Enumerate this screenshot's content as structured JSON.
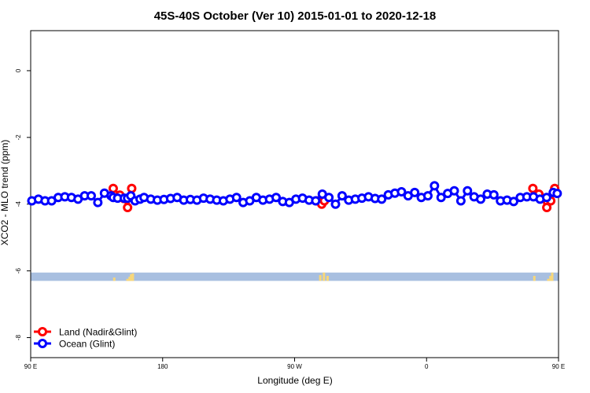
{
  "chart_data": {
    "type": "line",
    "title": "45S-40S October (Ver 10)   2015-01-01 to 2020-12-18",
    "xlabel": "Longitude (deg E)",
    "ylabel": "XCO2 - MLO trend (ppm)",
    "xlim": [
      90,
      450
    ],
    "ylim": [
      -8.6,
      1.2
    ],
    "x_ticks": [
      {
        "value": 90,
        "label": "90 E"
      },
      {
        "value": 180,
        "label": "180"
      },
      {
        "value": 270,
        "label": "90 W"
      },
      {
        "value": 360,
        "label": "0"
      },
      {
        "value": 450,
        "label": "90 E"
      },
      {
        "value": 540,
        "label": "180"
      }
    ],
    "y_ticks": [
      {
        "value": 0,
        "label": "0"
      },
      {
        "value": -2,
        "label": "-2"
      },
      {
        "value": -4,
        "label": "-4"
      },
      {
        "value": -6,
        "label": "-6"
      },
      {
        "value": -8,
        "label": "-8"
      }
    ],
    "legend_position": "bottom-left",
    "series": [
      {
        "name": "Land (Nadir&Glint)",
        "color": "#ff0000",
        "segments": [
          {
            "x": [
              146.3,
              150.8,
              153.5,
              156.1,
              158.9
            ],
            "y": [
              -3.53,
              -3.73,
              -3.83,
              -4.1,
              -3.53
            ]
          },
          {
            "x": [
              285.0,
              288.5,
              290.3
            ],
            "y": [
              -3.9,
              -4.0,
              -3.9
            ]
          },
          {
            "x": [
              432.5,
              436.6,
              442.0,
              444.7,
              447.4
            ],
            "y": [
              -3.53,
              -3.7,
              -4.1,
              -3.9,
              -3.53
            ]
          }
        ]
      },
      {
        "name": "Ocean (Glint)",
        "color": "#0000ff",
        "x": [
          90.8,
          95.3,
          99.8,
          104.3,
          108.8,
          113.3,
          117.8,
          122.3,
          126.8,
          131.3,
          135.8,
          140.3,
          144.8,
          146.3,
          149.3,
          153.8,
          156.1,
          158.3,
          161.2,
          164.6,
          167.3,
          171.9,
          176.4,
          180.9,
          185.4,
          189.9,
          194.4,
          198.9,
          203.4,
          207.9,
          212.4,
          216.9,
          221.4,
          225.9,
          230.4,
          234.9,
          239.4,
          243.9,
          248.4,
          252.9,
          257.4,
          261.9,
          266.4,
          270.9,
          275.4,
          279.9,
          284.4,
          288.9,
          293.4,
          297.9,
          302.4,
          306.9,
          311.4,
          315.9,
          320.4,
          324.9,
          329.4,
          333.9,
          338.4,
          342.9,
          347.4,
          351.9,
          356.4,
          360.9,
          365.4,
          369.9,
          374.4,
          378.9,
          383.4,
          387.9,
          392.4,
          396.9,
          401.4,
          405.9,
          410.4,
          414.9,
          419.4,
          423.9,
          428.4,
          432.9,
          437.4,
          441.9,
          446.4,
          449.1
        ],
        "y": [
          -3.9,
          -3.85,
          -3.9,
          -3.9,
          -3.8,
          -3.78,
          -3.8,
          -3.85,
          -3.75,
          -3.75,
          -3.95,
          -3.67,
          -3.75,
          -3.8,
          -3.82,
          -3.82,
          -3.82,
          -3.75,
          -3.9,
          -3.85,
          -3.8,
          -3.85,
          -3.88,
          -3.86,
          -3.83,
          -3.8,
          -3.88,
          -3.86,
          -3.88,
          -3.82,
          -3.85,
          -3.88,
          -3.9,
          -3.85,
          -3.8,
          -3.95,
          -3.9,
          -3.8,
          -3.88,
          -3.85,
          -3.8,
          -3.92,
          -3.95,
          -3.85,
          -3.82,
          -3.88,
          -3.9,
          -3.7,
          -3.8,
          -4.0,
          -3.75,
          -3.88,
          -3.85,
          -3.82,
          -3.78,
          -3.83,
          -3.85,
          -3.72,
          -3.67,
          -3.63,
          -3.75,
          -3.65,
          -3.8,
          -3.75,
          -3.45,
          -3.8,
          -3.68,
          -3.6,
          -3.9,
          -3.6,
          -3.78,
          -3.85,
          -3.7,
          -3.72,
          -3.9,
          -3.88,
          -3.92,
          -3.8,
          -3.78,
          -3.78,
          -3.85,
          -3.8,
          -3.65,
          -3.68
        ]
      }
    ],
    "land_ocean_strip": {
      "y_range": [
        -6.3,
        -6.05
      ],
      "ocean_color": "#a8bfe0",
      "land_color": "#f7d77a",
      "land_patches": [
        {
          "x": 147,
          "h": 0.4
        },
        {
          "x": 156,
          "h": 0.25
        },
        {
          "x": 157.5,
          "h": 0.5
        },
        {
          "x": 158.5,
          "h": 0.8
        },
        {
          "x": 159.7,
          "h": 0.9
        },
        {
          "x": 287.5,
          "h": 0.7
        },
        {
          "x": 290,
          "h": 1.0
        },
        {
          "x": 292.5,
          "h": 0.6
        },
        {
          "x": 433.5,
          "h": 0.6
        },
        {
          "x": 443,
          "h": 0.25
        },
        {
          "x": 444.5,
          "h": 0.6
        },
        {
          "x": 445.7,
          "h": 1.0
        }
      ]
    }
  }
}
